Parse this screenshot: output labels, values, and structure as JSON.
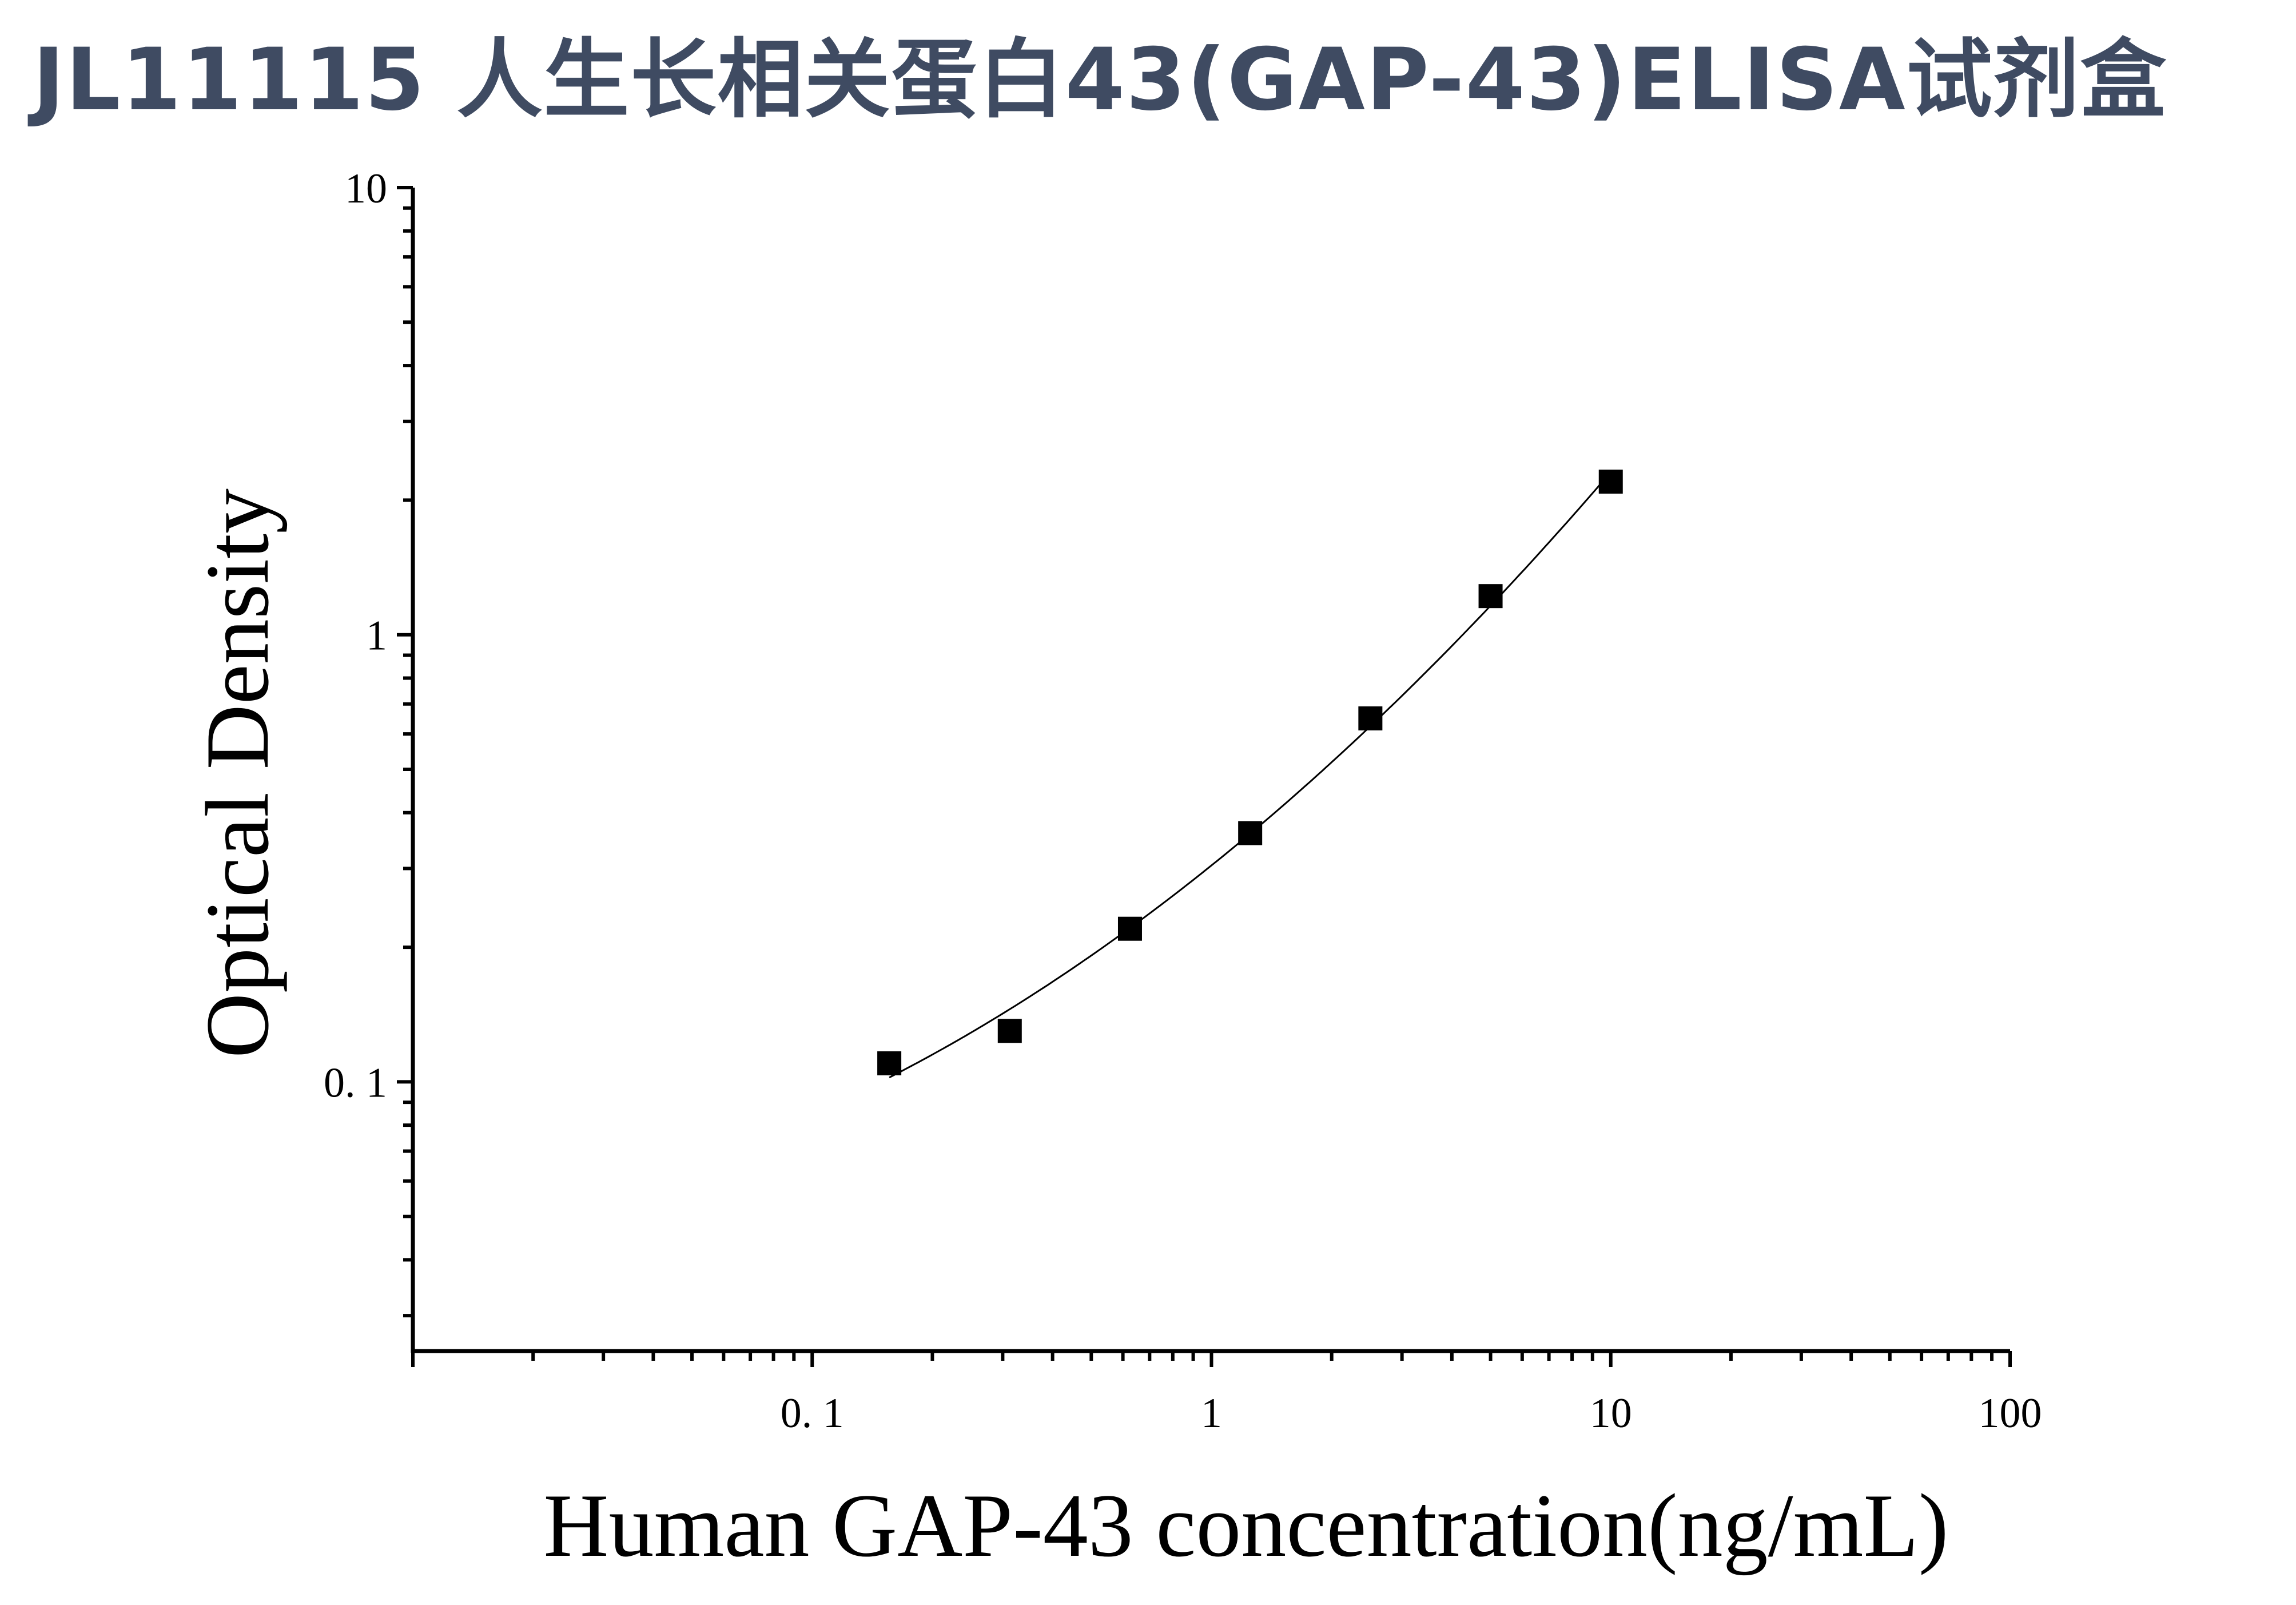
{
  "header": {
    "title": "JL11115 人生长相关蛋白43(GAP-43)ELISA试剂盒",
    "title_color": "#3f4b62"
  },
  "chart_data": {
    "type": "scatter",
    "xlabel": "Human GAP-43 concentration(ng/mL)",
    "ylabel": "Optical Density",
    "xscale": "log",
    "yscale": "log",
    "xlim": [
      0.01,
      100
    ],
    "ylim": [
      0.025,
      10
    ],
    "x_ticks": [
      {
        "value": 0.1,
        "label": "0. 1"
      },
      {
        "value": 1,
        "label": "1"
      },
      {
        "value": 10,
        "label": "10"
      },
      {
        "value": 100,
        "label": "100"
      }
    ],
    "y_ticks": [
      {
        "value": 0.1,
        "label": "0. 1"
      },
      {
        "value": 1,
        "label": "1"
      },
      {
        "value": 10,
        "label": "10"
      }
    ],
    "series": [
      {
        "marker": "square",
        "color": "#000000",
        "points": [
          {
            "x": 0.156,
            "y": 0.11
          },
          {
            "x": 0.3125,
            "y": 0.13
          },
          {
            "x": 0.625,
            "y": 0.22
          },
          {
            "x": 1.25,
            "y": 0.36
          },
          {
            "x": 2.5,
            "y": 0.65
          },
          {
            "x": 5,
            "y": 1.22
          },
          {
            "x": 10,
            "y": 2.2
          }
        ]
      }
    ],
    "fit_curve": true,
    "grid": false,
    "legend": "none"
  }
}
